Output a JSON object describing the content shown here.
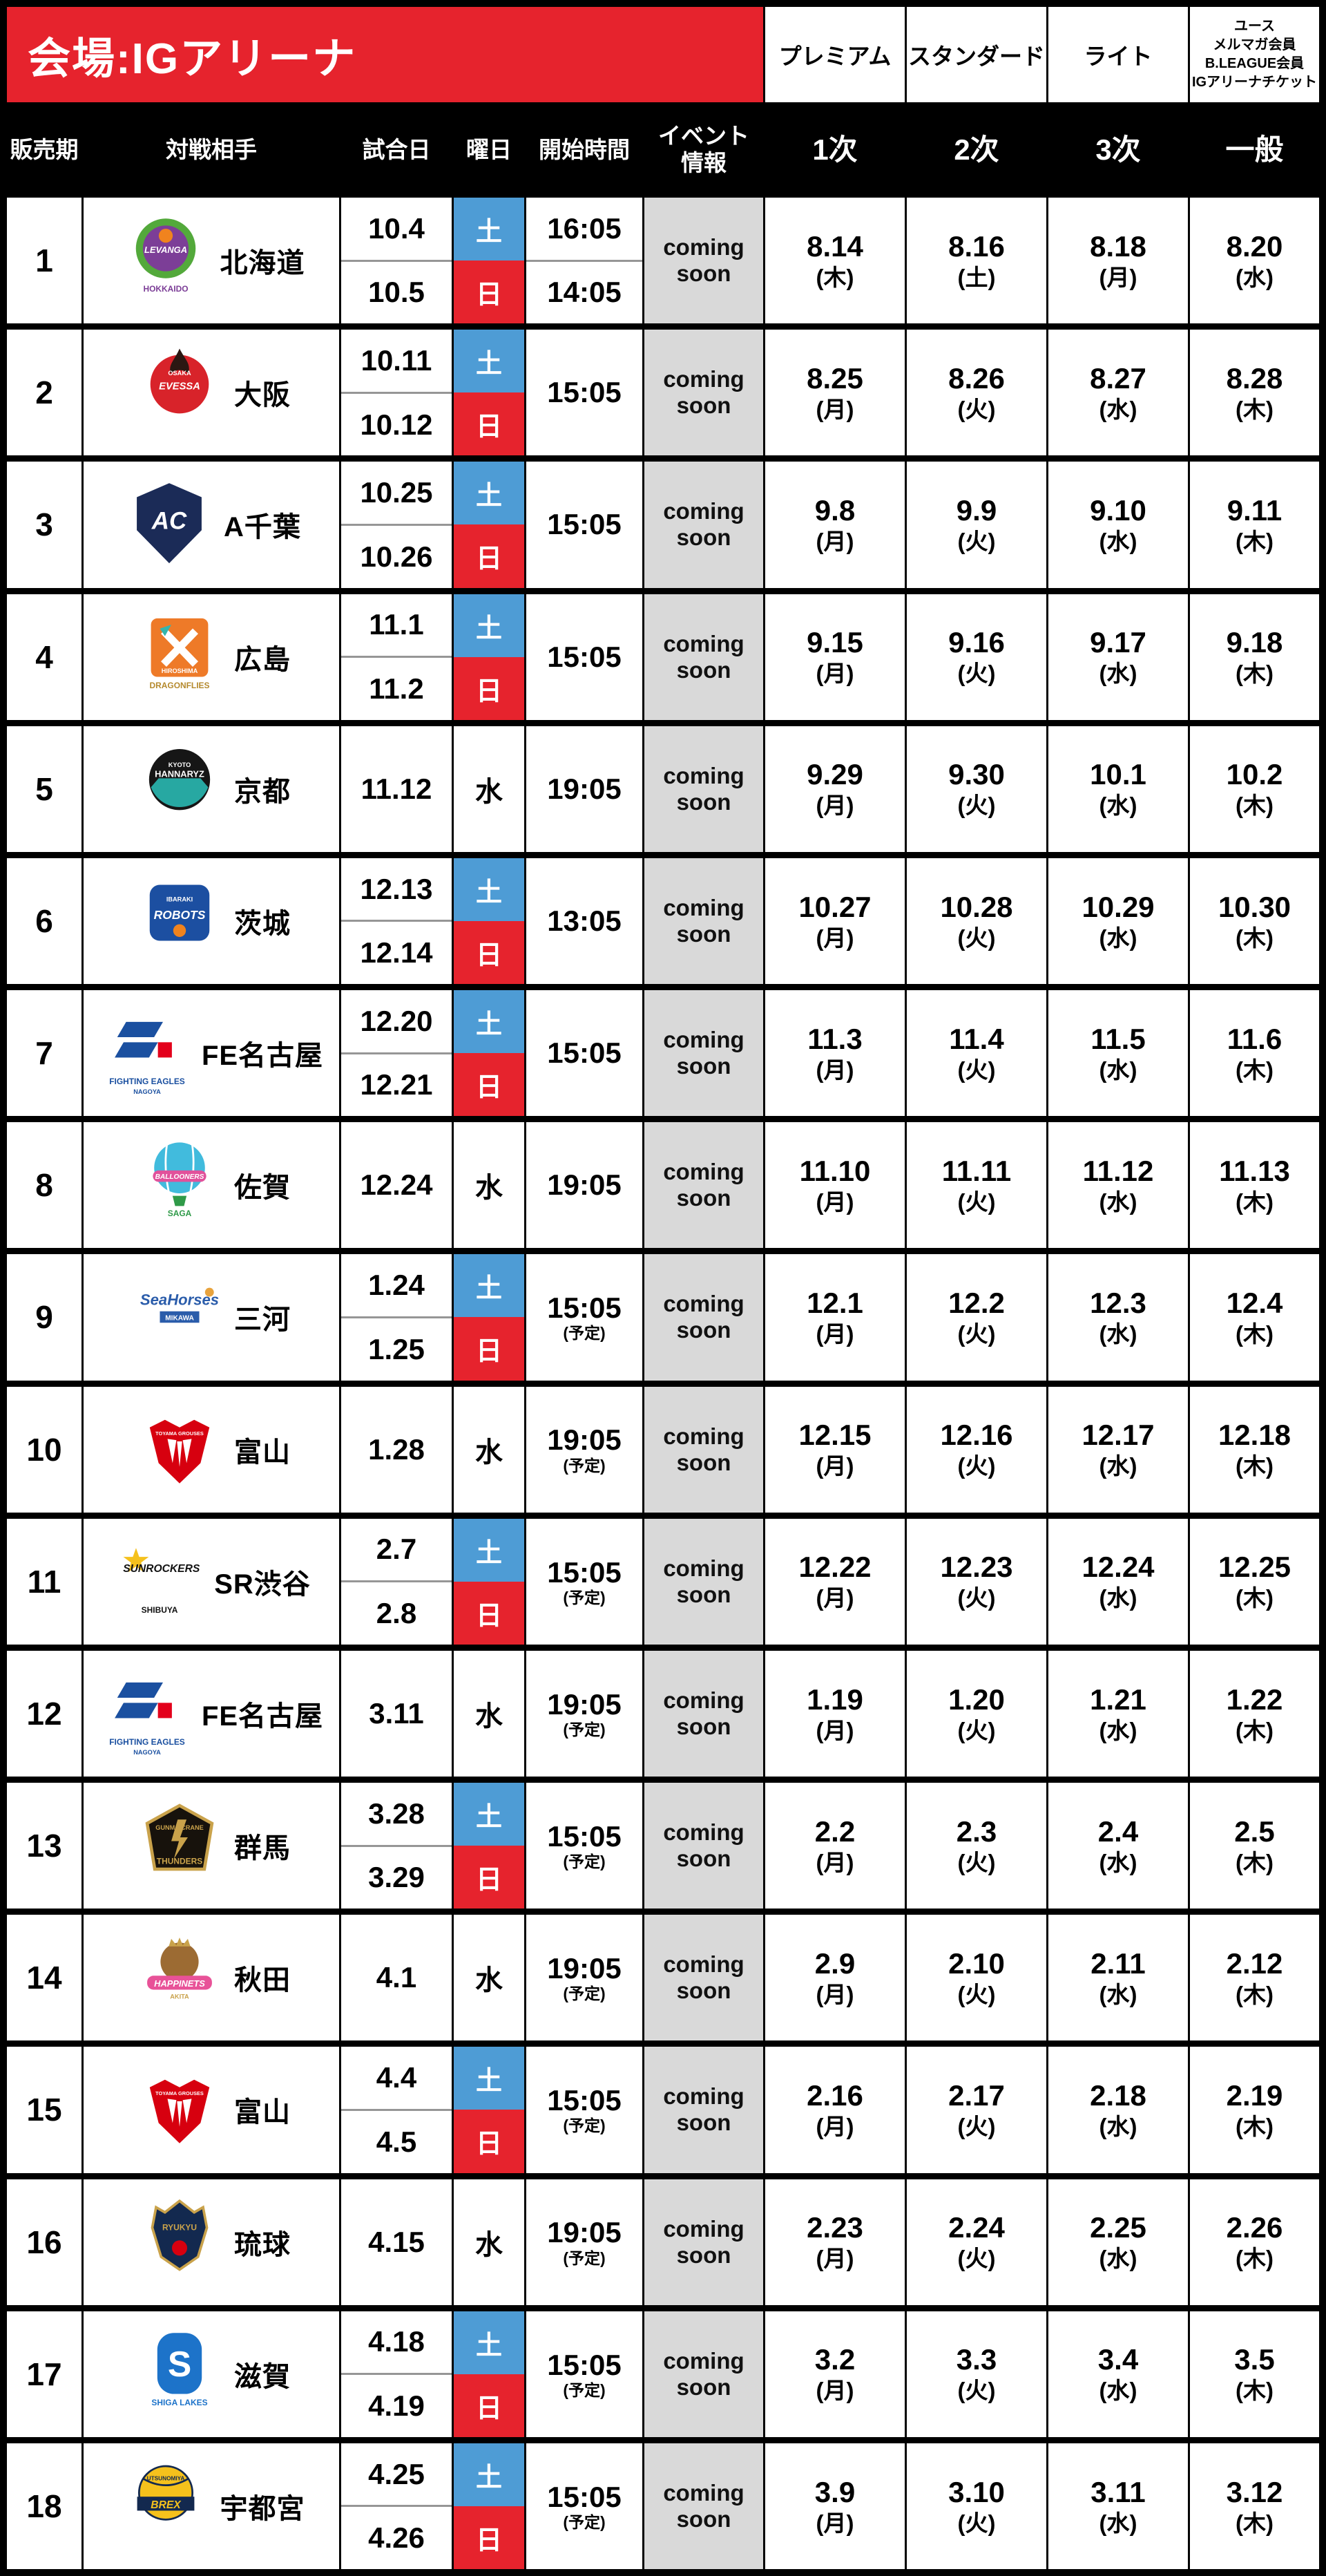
{
  "header": {
    "venue": "会場:IGアリーナ",
    "columns": [
      "販売期",
      "対戦相手",
      "試合日",
      "曜日",
      "開始時間"
    ],
    "event_header_lines": [
      "イベント",
      "情報"
    ],
    "tiers": [
      "プレミアム",
      "スタンダード",
      "ライト"
    ],
    "tier_general_lines": [
      "ユース",
      "メルマガ会員",
      "B.LEAGUE会員",
      "IGアリーナチケット"
    ],
    "rounds": [
      "1次",
      "2次",
      "3次",
      "一般"
    ]
  },
  "colors": {
    "banner_red": "#E6232D",
    "saturday_blue": "#4E9CD5",
    "sunday_red": "#E6232D",
    "coming_soon_bg": "#D9D9D9",
    "divider_gray": "#969696",
    "header_black": "#000000"
  },
  "rows": [
    {
      "no": "1",
      "opponent": "北海道",
      "logo": {
        "id": "levanga-hokkaido",
        "kind": "levanga",
        "colors": [
          "#7C3E97",
          "#53A93B",
          "#F0831E"
        ],
        "label": "LEVANGA",
        "captions": [
          {
            "text": "HOKKAIDO",
            "color": "#7C3E97"
          }
        ]
      },
      "games": [
        {
          "date": "10.4",
          "day": "土",
          "time": "16:05"
        },
        {
          "date": "10.5",
          "day": "日",
          "time": "14:05"
        }
      ],
      "time": "",
      "time_note": "",
      "event": "coming soon",
      "sales": [
        {
          "date": "8.14",
          "weekday": "(木)"
        },
        {
          "date": "8.16",
          "weekday": "(土)"
        },
        {
          "date": "8.18",
          "weekday": "(月)"
        },
        {
          "date": "8.20",
          "weekday": "(水)"
        }
      ]
    },
    {
      "no": "2",
      "opponent": "大阪",
      "logo": {
        "id": "osaka-evessa",
        "kind": "evessa",
        "colors": [
          "#D8232A",
          "#2B1712"
        ],
        "label": "EVESSA",
        "sub": "OSAKA",
        "captions": []
      },
      "games": [
        {
          "date": "10.11",
          "day": "土"
        },
        {
          "date": "10.12",
          "day": "日"
        }
      ],
      "time": "15:05",
      "time_note": "",
      "event": "coming soon",
      "sales": [
        {
          "date": "8.25",
          "weekday": "(月)"
        },
        {
          "date": "8.26",
          "weekday": "(火)"
        },
        {
          "date": "8.27",
          "weekday": "(水)"
        },
        {
          "date": "8.28",
          "weekday": "(木)"
        }
      ]
    },
    {
      "no": "3",
      "opponent": "A千葉",
      "logo": {
        "id": "altiri-chiba",
        "kind": "altiri",
        "colors": [
          "#1B2B57"
        ],
        "label": "AC",
        "captions": []
      },
      "games": [
        {
          "date": "10.25",
          "day": "土"
        },
        {
          "date": "10.26",
          "day": "日"
        }
      ],
      "time": "15:05",
      "time_note": "",
      "event": "coming soon",
      "sales": [
        {
          "date": "9.8",
          "weekday": "(月)"
        },
        {
          "date": "9.9",
          "weekday": "(火)"
        },
        {
          "date": "9.10",
          "weekday": "(水)"
        },
        {
          "date": "9.11",
          "weekday": "(木)"
        }
      ]
    },
    {
      "no": "4",
      "opponent": "広島",
      "logo": {
        "id": "hiroshima-dragonflies",
        "kind": "dragonflies",
        "colors": [
          "#EE7A28",
          "#35B5AC"
        ],
        "label": "HIROSHIMA",
        "captions": [
          {
            "text": "DRAGONFLIES",
            "color": "#B58A2E"
          }
        ]
      },
      "games": [
        {
          "date": "11.1",
          "day": "土"
        },
        {
          "date": "11.2",
          "day": "日"
        }
      ],
      "time": "15:05",
      "time_note": "",
      "event": "coming soon",
      "sales": [
        {
          "date": "9.15",
          "weekday": "(月)"
        },
        {
          "date": "9.16",
          "weekday": "(火)"
        },
        {
          "date": "9.17",
          "weekday": "(水)"
        },
        {
          "date": "9.18",
          "weekday": "(木)"
        }
      ]
    },
    {
      "no": "5",
      "opponent": "京都",
      "logo": {
        "id": "kyoto-hannaryz",
        "kind": "hannaryz",
        "colors": [
          "#161616",
          "#27A8A2"
        ],
        "label": "HANNARYZ",
        "sub": "KYOTO",
        "captions": []
      },
      "games": [
        {
          "date": "11.12",
          "day": "水"
        }
      ],
      "time": "19:05",
      "time_note": "",
      "event": "coming soon",
      "sales": [
        {
          "date": "9.29",
          "weekday": "(月)"
        },
        {
          "date": "9.30",
          "weekday": "(火)"
        },
        {
          "date": "10.1",
          "weekday": "(水)"
        },
        {
          "date": "10.2",
          "weekday": "(木)"
        }
      ]
    },
    {
      "no": "6",
      "opponent": "茨城",
      "logo": {
        "id": "ibaraki-robots",
        "kind": "robots",
        "colors": [
          "#1C4FA1",
          "#F0831E"
        ],
        "label": "ROBOTS",
        "sub": "IBARAKI",
        "captions": []
      },
      "games": [
        {
          "date": "12.13",
          "day": "土"
        },
        {
          "date": "12.14",
          "day": "日"
        }
      ],
      "time": "13:05",
      "time_note": "",
      "event": "coming soon",
      "sales": [
        {
          "date": "10.27",
          "weekday": "(月)"
        },
        {
          "date": "10.28",
          "weekday": "(火)"
        },
        {
          "date": "10.29",
          "weekday": "(水)"
        },
        {
          "date": "10.30",
          "weekday": "(木)"
        }
      ]
    },
    {
      "no": "7",
      "opponent": "FE名古屋",
      "logo": {
        "id": "fe-nagoya",
        "kind": "fe",
        "colors": [
          "#1B50A0",
          "#E3001B"
        ],
        "label": "",
        "captions": [
          {
            "text": "FIGHTING EAGLES",
            "color": "#1B50A0"
          },
          {
            "text": "NAGOYA",
            "color": "#1B50A0",
            "size": 10
          }
        ]
      },
      "games": [
        {
          "date": "12.20",
          "day": "土"
        },
        {
          "date": "12.21",
          "day": "日"
        }
      ],
      "time": "15:05",
      "time_note": "",
      "event": "coming soon",
      "sales": [
        {
          "date": "11.3",
          "weekday": "(月)"
        },
        {
          "date": "11.4",
          "weekday": "(火)"
        },
        {
          "date": "11.5",
          "weekday": "(水)"
        },
        {
          "date": "11.6",
          "weekday": "(木)"
        }
      ]
    },
    {
      "no": "8",
      "opponent": "佐賀",
      "logo": {
        "id": "saga-ballooners",
        "kind": "ballooners",
        "colors": [
          "#41BBDD",
          "#E1519B",
          "#2F9A48"
        ],
        "label": "BALLOONERS",
        "captions": [
          {
            "text": "SAGA",
            "color": "#2F9A48"
          }
        ]
      },
      "games": [
        {
          "date": "12.24",
          "day": "水"
        }
      ],
      "time": "19:05",
      "time_note": "",
      "event": "coming soon",
      "sales": [
        {
          "date": "11.10",
          "weekday": "(月)"
        },
        {
          "date": "11.11",
          "weekday": "(火)"
        },
        {
          "date": "11.12",
          "weekday": "(水)"
        },
        {
          "date": "11.13",
          "weekday": "(木)"
        }
      ]
    },
    {
      "no": "9",
      "opponent": "三河",
      "logo": {
        "id": "seahorses-mikawa",
        "kind": "seahorses",
        "colors": [
          "#2A5CAA",
          "#E8A33D"
        ],
        "label": "SeaHorses",
        "sub": "MIKAWA",
        "captions": []
      },
      "games": [
        {
          "date": "1.24",
          "day": "土"
        },
        {
          "date": "1.25",
          "day": "日"
        }
      ],
      "time": "15:05",
      "time_note": "(予定)",
      "event": "coming soon",
      "sales": [
        {
          "date": "12.1",
          "weekday": "(月)"
        },
        {
          "date": "12.2",
          "weekday": "(火)"
        },
        {
          "date": "12.3",
          "weekday": "(水)"
        },
        {
          "date": "12.4",
          "weekday": "(木)"
        }
      ]
    },
    {
      "no": "10",
      "opponent": "富山",
      "logo": {
        "id": "toyama-grouses",
        "kind": "grouses",
        "colors": [
          "#D7000F"
        ],
        "label": "TOYAMA GROUSES",
        "captions": []
      },
      "games": [
        {
          "date": "1.28",
          "day": "水"
        }
      ],
      "time": "19:05",
      "time_note": "(予定)",
      "event": "coming soon",
      "sales": [
        {
          "date": "12.15",
          "weekday": "(月)"
        },
        {
          "date": "12.16",
          "weekday": "(火)"
        },
        {
          "date": "12.17",
          "weekday": "(水)"
        },
        {
          "date": "12.18",
          "weekday": "(木)"
        }
      ]
    },
    {
      "no": "11",
      "opponent": "SR渋谷",
      "logo": {
        "id": "sunrockers-shibuya",
        "kind": "sunrockers",
        "colors": [
          "#111111",
          "#F5C11C"
        ],
        "label": "SUNROCKERS",
        "captions": [
          {
            "text": "SHIBUYA",
            "color": "#111111"
          }
        ]
      },
      "games": [
        {
          "date": "2.7",
          "day": "土"
        },
        {
          "date": "2.8",
          "day": "日"
        }
      ],
      "time": "15:05",
      "time_note": "(予定)",
      "event": "coming soon",
      "sales": [
        {
          "date": "12.22",
          "weekday": "(月)"
        },
        {
          "date": "12.23",
          "weekday": "(火)"
        },
        {
          "date": "12.24",
          "weekday": "(水)"
        },
        {
          "date": "12.25",
          "weekday": "(木)"
        }
      ]
    },
    {
      "no": "12",
      "opponent": "FE名古屋",
      "logo": {
        "id": "fe-nagoya",
        "kind": "fe",
        "colors": [
          "#1B50A0",
          "#E3001B"
        ],
        "label": "",
        "captions": [
          {
            "text": "FIGHTING EAGLES",
            "color": "#1B50A0"
          },
          {
            "text": "NAGOYA",
            "color": "#1B50A0",
            "size": 10
          }
        ]
      },
      "games": [
        {
          "date": "3.11",
          "day": "水"
        }
      ],
      "time": "19:05",
      "time_note": "(予定)",
      "event": "coming soon",
      "sales": [
        {
          "date": "1.19",
          "weekday": "(月)"
        },
        {
          "date": "1.20",
          "weekday": "(火)"
        },
        {
          "date": "1.21",
          "weekday": "(水)"
        },
        {
          "date": "1.22",
          "weekday": "(木)"
        }
      ]
    },
    {
      "no": "13",
      "opponent": "群馬",
      "logo": {
        "id": "gunma-crane-thunders",
        "kind": "thunders",
        "colors": [
          "#17120C",
          "#C9A24B"
        ],
        "label": "GUNMA CRANE",
        "sub": "THUNDERS",
        "captions": []
      },
      "games": [
        {
          "date": "3.28",
          "day": "土"
        },
        {
          "date": "3.29",
          "day": "日"
        }
      ],
      "time": "15:05",
      "time_note": "(予定)",
      "event": "coming soon",
      "sales": [
        {
          "date": "2.2",
          "weekday": "(月)"
        },
        {
          "date": "2.3",
          "weekday": "(火)"
        },
        {
          "date": "2.4",
          "weekday": "(水)"
        },
        {
          "date": "2.5",
          "weekday": "(木)"
        }
      ]
    },
    {
      "no": "14",
      "opponent": "秋田",
      "logo": {
        "id": "akita-happinets",
        "kind": "happinets",
        "colors": [
          "#E85298",
          "#9C6B33",
          "#C9A24B"
        ],
        "label": "HAPPINETS",
        "sub": "AKITA",
        "captions": []
      },
      "games": [
        {
          "date": "4.1",
          "day": "水"
        }
      ],
      "time": "19:05",
      "time_note": "(予定)",
      "event": "coming soon",
      "sales": [
        {
          "date": "2.9",
          "weekday": "(月)"
        },
        {
          "date": "2.10",
          "weekday": "(火)"
        },
        {
          "date": "2.11",
          "weekday": "(水)"
        },
        {
          "date": "2.12",
          "weekday": "(木)"
        }
      ]
    },
    {
      "no": "15",
      "opponent": "富山",
      "logo": {
        "id": "toyama-grouses",
        "kind": "grouses",
        "colors": [
          "#D7000F"
        ],
        "label": "TOYAMA GROUSES",
        "captions": []
      },
      "games": [
        {
          "date": "4.4",
          "day": "土"
        },
        {
          "date": "4.5",
          "day": "日"
        }
      ],
      "time": "15:05",
      "time_note": "(予定)",
      "event": "coming soon",
      "sales": [
        {
          "date": "2.16",
          "weekday": "(月)"
        },
        {
          "date": "2.17",
          "weekday": "(火)"
        },
        {
          "date": "2.18",
          "weekday": "(水)"
        },
        {
          "date": "2.19",
          "weekday": "(木)"
        }
      ]
    },
    {
      "no": "16",
      "opponent": "琉球",
      "logo": {
        "id": "ryukyu-golden-kings",
        "kind": "ryukyu",
        "colors": [
          "#13294F",
          "#C9A24B",
          "#D7000F"
        ],
        "label": "RYUKYU",
        "captions": []
      },
      "games": [
        {
          "date": "4.15",
          "day": "水"
        }
      ],
      "time": "19:05",
      "time_note": "(予定)",
      "event": "coming soon",
      "sales": [
        {
          "date": "2.23",
          "weekday": "(月)"
        },
        {
          "date": "2.24",
          "weekday": "(火)"
        },
        {
          "date": "2.25",
          "weekday": "(水)"
        },
        {
          "date": "2.26",
          "weekday": "(木)"
        }
      ]
    },
    {
      "no": "17",
      "opponent": "滋賀",
      "logo": {
        "id": "shiga-lakes",
        "kind": "lakes",
        "colors": [
          "#1D73C9"
        ],
        "label": "S",
        "captions": [
          {
            "text": "SHIGA LAKES",
            "color": "#1D73C9"
          }
        ]
      },
      "games": [
        {
          "date": "4.18",
          "day": "土"
        },
        {
          "date": "4.19",
          "day": "日"
        }
      ],
      "time": "15:05",
      "time_note": "(予定)",
      "event": "coming soon",
      "sales": [
        {
          "date": "3.2",
          "weekday": "(月)"
        },
        {
          "date": "3.3",
          "weekday": "(火)"
        },
        {
          "date": "3.4",
          "weekday": "(水)"
        },
        {
          "date": "3.5",
          "weekday": "(木)"
        }
      ]
    },
    {
      "no": "18",
      "opponent": "宇都宮",
      "logo": {
        "id": "utsunomiya-brex",
        "kind": "brex",
        "colors": [
          "#F5C11C",
          "#13294F"
        ],
        "label": "BREX",
        "sub": "UTSUNOMIYA",
        "captions": []
      },
      "games": [
        {
          "date": "4.25",
          "day": "土"
        },
        {
          "date": "4.26",
          "day": "日"
        }
      ],
      "time": "15:05",
      "time_note": "(予定)",
      "event": "coming soon",
      "sales": [
        {
          "date": "3.9",
          "weekday": "(月)"
        },
        {
          "date": "3.10",
          "weekday": "(火)"
        },
        {
          "date": "3.11",
          "weekday": "(水)"
        },
        {
          "date": "3.12",
          "weekday": "(木)"
        }
      ]
    }
  ]
}
